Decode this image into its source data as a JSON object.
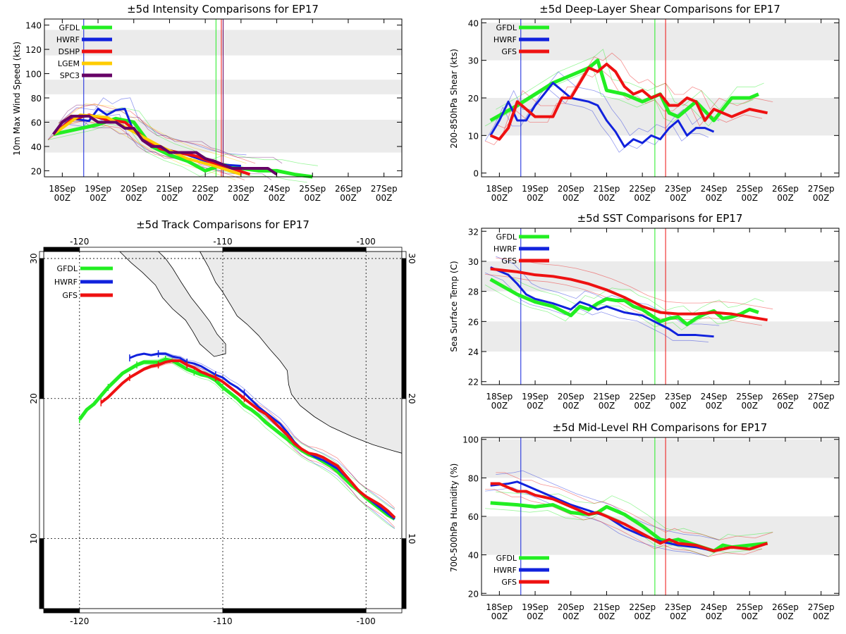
{
  "x_categories": [
    "18Sep",
    "19Sep",
    "20Sep",
    "21Sep",
    "22Sep",
    "23Sep",
    "24Sep",
    "25Sep",
    "26Sep",
    "27Sep"
  ],
  "x_hour": "00Z",
  "colors": {
    "GFDL": "#22ee22",
    "HWRF": "#1122dd",
    "DSHP": "#ee1111",
    "LGEM": "#ffcc00",
    "SPC3": "#660066",
    "GFS": "#ee1111",
    "gray": "#ebebeb"
  },
  "chart_data": [
    {
      "id": "intensity",
      "type": "line",
      "title": "±5d Intensity Comparisons for EP17",
      "ylabel": "10m Max Wind Speed (kts)",
      "ylim": [
        15,
        145
      ],
      "yticks": [
        20,
        40,
        60,
        80,
        100,
        120,
        140
      ],
      "bands": [
        [
          35,
          62
        ],
        [
          83,
          95
        ],
        [
          115,
          136
        ]
      ],
      "vlines": [
        {
          "x": 0.6,
          "color": "HWRF"
        },
        {
          "x": 4.3,
          "color": "GFDL"
        },
        {
          "x": 4.45,
          "color": "DSHP"
        },
        {
          "x": 4.5,
          "color": "SPC3"
        }
      ],
      "legend": [
        "GFDL",
        "HWRF",
        "DSHP",
        "LGEM",
        "SPC3"
      ],
      "series": [
        {
          "name": "GFDL",
          "x": [
            -0.25,
            1.0,
            1.5,
            2.0,
            2.5,
            3.0,
            3.5,
            4.0,
            4.5,
            5.0,
            5.5,
            6.0,
            6.5,
            7.0
          ],
          "y": [
            50,
            58,
            63,
            60,
            40,
            33,
            28,
            20,
            25,
            22,
            20,
            20,
            17,
            15
          ]
        },
        {
          "name": "HWRF",
          "x": [
            -0.25,
            0.25,
            0.75,
            1.0,
            1.25,
            1.5,
            1.75,
            2.0,
            2.5,
            3.0,
            3.5,
            4.0,
            4.5,
            5.0
          ],
          "y": [
            50,
            63,
            61,
            71,
            66,
            70,
            71,
            52,
            42,
            37,
            33,
            28,
            25,
            24
          ]
        },
        {
          "name": "DSHP",
          "x": [
            -0.25,
            0.25,
            0.75,
            1.25,
            1.75,
            2.25,
            2.75,
            3.25,
            3.75,
            4.25,
            4.75,
            5.25
          ],
          "y": [
            50,
            62,
            66,
            62,
            60,
            48,
            38,
            35,
            32,
            26,
            22,
            17
          ]
        },
        {
          "name": "LGEM",
          "x": [
            -0.25,
            0.5,
            1.25,
            2.0,
            2.75,
            3.5,
            4.25,
            5.0
          ],
          "y": [
            50,
            66,
            64,
            52,
            40,
            30,
            24,
            17
          ]
        },
        {
          "name": "SPC3",
          "x": [
            -0.25,
            0.0,
            0.25,
            0.5,
            0.75,
            1.0,
            1.25,
            1.5,
            1.75,
            2.0,
            2.25,
            2.5,
            2.75,
            3.0,
            3.25,
            3.5,
            3.75,
            4.0,
            4.25,
            4.5,
            4.75,
            5.0,
            5.25,
            5.5,
            5.75,
            6.0
          ],
          "y": [
            50,
            60,
            65,
            65,
            65,
            60,
            60,
            60,
            55,
            55,
            45,
            40,
            40,
            35,
            35,
            35,
            35,
            30,
            28,
            25,
            22,
            22,
            22,
            22,
            22,
            17
          ]
        }
      ]
    },
    {
      "id": "shear",
      "type": "line",
      "title": "±5d Deep-Layer Shear Comparisons for EP17",
      "ylabel": "200-850hPa Shear (kts)",
      "ylim": [
        -1,
        41
      ],
      "yticks": [
        0,
        10,
        20,
        30,
        40
      ],
      "bands": [
        [
          10,
          20
        ],
        [
          30,
          40
        ]
      ],
      "vlines": [
        {
          "x": 0.6,
          "color": "HWRF"
        },
        {
          "x": 4.35,
          "color": "GFDL"
        },
        {
          "x": 4.65,
          "color": "GFS"
        }
      ],
      "legend": [
        "GFDL",
        "HWRF",
        "GFS"
      ],
      "series": [
        {
          "name": "GFDL",
          "x": [
            -0.25,
            0.5,
            1.0,
            1.5,
            2.0,
            2.5,
            2.75,
            3.0,
            3.5,
            4.0,
            4.5,
            4.75,
            5.0,
            5.5,
            6.0,
            6.5,
            7.0,
            7.25
          ],
          "y": [
            14,
            18,
            21,
            24,
            26,
            28,
            30,
            22,
            21,
            19,
            21,
            16,
            15,
            19,
            14,
            20,
            20,
            21
          ]
        },
        {
          "name": "HWRF",
          "x": [
            -0.25,
            0.0,
            0.25,
            0.5,
            0.75,
            1.0,
            1.5,
            2.0,
            2.5,
            2.75,
            3.0,
            3.25,
            3.5,
            3.75,
            4.0,
            4.25,
            4.5,
            4.75,
            5.0,
            5.25,
            5.5,
            5.75,
            6.0
          ],
          "y": [
            10,
            14,
            19,
            14,
            14,
            18,
            24,
            20,
            19,
            18,
            14,
            11,
            7,
            9,
            8,
            10,
            9,
            12,
            14,
            10,
            12,
            12,
            11
          ]
        },
        {
          "name": "GFS",
          "x": [
            -0.25,
            0.0,
            0.25,
            0.5,
            1.0,
            1.5,
            1.75,
            2.0,
            2.5,
            2.75,
            3.0,
            3.25,
            3.5,
            3.75,
            4.0,
            4.25,
            4.5,
            4.75,
            5.0,
            5.25,
            5.5,
            5.75,
            6.0,
            6.5,
            7.0,
            7.5
          ],
          "y": [
            10,
            9,
            12,
            19,
            15,
            15,
            20,
            20,
            28,
            27,
            29,
            27,
            23,
            21,
            22,
            20,
            21,
            18,
            18,
            20,
            19,
            14,
            17,
            15,
            17,
            16
          ]
        }
      ]
    },
    {
      "id": "sst",
      "type": "line",
      "title": "±5d SST Comparisons for EP17",
      "ylabel": "Sea Surface Temp (C)",
      "ylim": [
        21.8,
        32.2
      ],
      "yticks": [
        22,
        24,
        26,
        28,
        30,
        32
      ],
      "bands": [
        [
          24,
          26
        ],
        [
          28,
          30
        ]
      ],
      "vlines": [
        {
          "x": 0.6,
          "color": "HWRF"
        },
        {
          "x": 4.35,
          "color": "GFDL"
        },
        {
          "x": 4.65,
          "color": "GFS"
        }
      ],
      "legend": [
        "GFDL",
        "HWRF",
        "GFS"
      ],
      "series": [
        {
          "name": "GFDL",
          "x": [
            -0.25,
            0.5,
            1.0,
            1.5,
            2.0,
            2.25,
            2.5,
            2.75,
            3.0,
            3.25,
            3.5,
            3.75,
            4.0,
            4.25,
            4.5,
            4.75,
            5.0,
            5.25,
            5.5,
            5.75,
            6.0,
            6.25,
            6.5,
            6.75,
            7.0,
            7.25
          ],
          "y": [
            28.8,
            27.8,
            27.3,
            27.0,
            26.4,
            27.0,
            26.8,
            27.2,
            27.5,
            27.4,
            27.4,
            27.0,
            26.8,
            26.4,
            26.0,
            26.2,
            26.3,
            25.8,
            26.2,
            26.5,
            26.7,
            26.2,
            26.3,
            26.5,
            26.8,
            26.6
          ]
        },
        {
          "name": "HWRF",
          "x": [
            -0.25,
            0.25,
            0.5,
            0.75,
            1.0,
            1.5,
            2.0,
            2.25,
            2.5,
            2.75,
            3.0,
            3.5,
            4.0,
            4.5,
            4.75,
            5.0,
            5.25,
            5.5,
            6.0
          ],
          "y": [
            29.6,
            29.1,
            28.5,
            27.8,
            27.5,
            27.2,
            26.8,
            27.3,
            27.1,
            26.8,
            27.0,
            26.6,
            26.4,
            25.8,
            25.5,
            25.1,
            25.1,
            25.1,
            25.0
          ]
        },
        {
          "name": "GFS",
          "x": [
            -0.25,
            0.5,
            1.0,
            1.5,
            2.0,
            2.5,
            3.0,
            3.5,
            4.0,
            4.5,
            5.0,
            5.5,
            6.0,
            6.5,
            7.0,
            7.5
          ],
          "y": [
            29.5,
            29.3,
            29.1,
            29.0,
            28.8,
            28.5,
            28.1,
            27.6,
            27.0,
            26.6,
            26.5,
            26.5,
            26.6,
            26.5,
            26.3,
            26.1
          ]
        }
      ]
    },
    {
      "id": "rh",
      "type": "line",
      "title": "±5d Mid-Level RH Comparisons for EP17",
      "ylabel": "700-500hPa Humidity (%)",
      "ylim": [
        19,
        101
      ],
      "yticks": [
        20,
        40,
        60,
        80,
        100
      ],
      "bands": [
        [
          40,
          60
        ],
        [
          80,
          100
        ]
      ],
      "vlines": [
        {
          "x": 0.6,
          "color": "HWRF"
        },
        {
          "x": 4.35,
          "color": "GFDL"
        },
        {
          "x": 4.65,
          "color": "GFS"
        }
      ],
      "legend": [
        "GFDL",
        "HWRF",
        "GFS"
      ],
      "series": [
        {
          "name": "GFDL",
          "x": [
            -0.25,
            0.5,
            1.0,
            1.5,
            2.0,
            2.5,
            2.75,
            3.0,
            3.5,
            4.0,
            4.5,
            4.75,
            5.0,
            5.5,
            6.0,
            6.25,
            6.5,
            7.0,
            7.5
          ],
          "y": [
            67,
            66,
            65,
            66,
            62,
            61,
            62,
            65,
            61,
            55,
            48,
            47,
            48,
            45,
            42,
            45,
            44,
            45,
            46
          ]
        },
        {
          "name": "HWRF",
          "x": [
            -0.25,
            0.25,
            0.5,
            0.75,
            1.0,
            1.5,
            2.0,
            2.5,
            3.0,
            3.5,
            4.0,
            4.5,
            5.0,
            5.5,
            6.0
          ],
          "y": [
            76,
            77,
            78,
            76,
            74,
            70,
            66,
            63,
            60,
            54,
            50,
            47,
            45,
            44,
            42
          ]
        },
        {
          "name": "GFS",
          "x": [
            -0.25,
            0.0,
            0.25,
            0.5,
            0.75,
            1.0,
            1.5,
            2.0,
            2.5,
            2.75,
            3.0,
            3.5,
            4.0,
            4.5,
            4.75,
            5.0,
            5.5,
            6.0,
            6.5,
            7.0,
            7.5
          ],
          "y": [
            77,
            77,
            75,
            73,
            73,
            71,
            69,
            65,
            61,
            62,
            60,
            56,
            51,
            46,
            48,
            46,
            45,
            42,
            44,
            43,
            46
          ]
        }
      ]
    },
    {
      "id": "track",
      "type": "line",
      "title": "±5d Track Comparisons for EP17",
      "xlim": [
        -122.5,
        -97.5
      ],
      "ylim": [
        5,
        30.5
      ],
      "xticks": [
        -120,
        -110,
        -100
      ],
      "yticks": [
        10,
        20,
        30
      ],
      "legend": [
        "GFDL",
        "HWRF",
        "GFS"
      ],
      "series": [
        {
          "name": "GFDL",
          "lon": [
            -120,
            -119.5,
            -119,
            -118.5,
            -118,
            -117.5,
            -117,
            -116.5,
            -116,
            -115.5,
            -115,
            -114.5,
            -114,
            -113.5,
            -113,
            -112.5,
            -112,
            -111.5,
            -111,
            -110.5,
            -110,
            -109.5,
            -109,
            -108.5,
            -108,
            -107.5,
            -107,
            -106.5,
            -106,
            -105.5,
            -105,
            -104.5,
            -104,
            -103.5,
            -103,
            -102.5,
            -102,
            -101.5,
            -101,
            -100.5,
            -100,
            -99.5,
            -99,
            -98.5,
            -98
          ],
          "lat": [
            18.5,
            19.2,
            19.6,
            20.2,
            20.8,
            21.3,
            21.8,
            22.1,
            22.4,
            22.6,
            22.6,
            22.6,
            22.8,
            22.7,
            22.4,
            22.1,
            21.9,
            21.7,
            21.6,
            21.3,
            20.8,
            20.4,
            20.0,
            19.5,
            19.2,
            18.8,
            18.3,
            17.9,
            17.5,
            17.1,
            16.7,
            16.3,
            16.0,
            15.8,
            15.5,
            15.2,
            14.8,
            14.3,
            13.8,
            13.4,
            12.9,
            12.5,
            12.1,
            11.7,
            11.4
          ]
        },
        {
          "name": "HWRF",
          "lon": [
            -116.5,
            -116,
            -115.5,
            -115,
            -114.5,
            -114,
            -113.5,
            -113,
            -112.5,
            -112,
            -111.5,
            -111,
            -110.5,
            -110,
            -109.5,
            -109,
            -108.5,
            -108,
            -107.5,
            -107,
            -106.5,
            -106,
            -105.5,
            -105,
            -104.5,
            -104,
            -103.5,
            -103,
            -102.5,
            -102,
            -101.5,
            -101,
            -100.5,
            -100,
            -99.5,
            -99,
            -98.5,
            -98
          ],
          "lat": [
            22.9,
            23.1,
            23.2,
            23.1,
            23.2,
            23.2,
            23.0,
            22.9,
            22.6,
            22.5,
            22.3,
            22.0,
            21.7,
            21.5,
            21.1,
            20.8,
            20.4,
            19.9,
            19.4,
            19.0,
            18.6,
            18.2,
            17.6,
            16.9,
            16.4,
            16.1,
            15.8,
            15.6,
            15.3,
            15.0,
            14.5,
            14.0,
            13.4,
            13.0,
            12.6,
            12.2,
            11.8,
            11.4
          ]
        },
        {
          "name": "GFS",
          "lon": [
            -118.5,
            -118,
            -117.5,
            -117,
            -116.5,
            -116,
            -115.5,
            -115,
            -114.5,
            -114,
            -113.5,
            -113,
            -112.5,
            -112,
            -111.5,
            -111,
            -110.5,
            -110,
            -109.5,
            -109,
            -108.5,
            -108,
            -107.5,
            -107,
            -106.5,
            -106,
            -105.5,
            -105,
            -104.5,
            -104,
            -103.5,
            -103,
            -102.5,
            -102,
            -101.5,
            -101,
            -100.5,
            -100,
            -99.5,
            -99,
            -98.5,
            -98
          ],
          "lat": [
            19.7,
            20.1,
            20.6,
            21.1,
            21.5,
            21.8,
            22.1,
            22.3,
            22.4,
            22.6,
            22.7,
            22.7,
            22.4,
            22.2,
            21.9,
            21.7,
            21.5,
            21.2,
            20.8,
            20.4,
            20.0,
            19.6,
            19.2,
            18.9,
            18.4,
            17.9,
            17.4,
            16.8,
            16.4,
            16.1,
            16.0,
            15.8,
            15.5,
            15.2,
            14.6,
            14.0,
            13.4,
            13.0,
            12.7,
            12.4,
            12.0,
            11.5
          ]
        }
      ]
    }
  ]
}
